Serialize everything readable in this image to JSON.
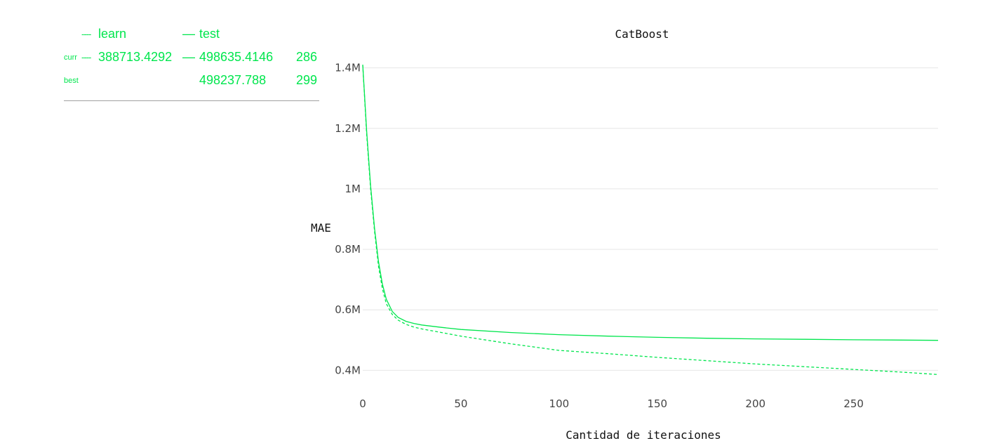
{
  "legend": {
    "learn_label": "learn",
    "test_label": "test",
    "curr_label": "curr",
    "best_label": "best",
    "curr_learn": "388713.4292",
    "curr_test": "498635.4146",
    "curr_iter": "286",
    "best_test": "498237.788",
    "best_iter": "299",
    "learn_symbol": "----",
    "test_symbol": "—"
  },
  "colors": {
    "series": "#00e64d",
    "grid": "#e6e6e6",
    "divider": "#a0a0a0"
  },
  "chart_data": {
    "type": "line",
    "title": "CatBoost",
    "xlabel": "Cantidad de iteraciones",
    "ylabel": "MAE",
    "xlim": [
      0,
      293
    ],
    "ylim": [
      380000,
      1420000
    ],
    "x_ticks": [
      0,
      50,
      100,
      150,
      200,
      250
    ],
    "y_ticks": [
      400000,
      600000,
      800000,
      1000000,
      1200000,
      1400000
    ],
    "y_tick_labels": [
      "0.4M",
      "0.6M",
      "0.8M",
      "1M",
      "1.2M",
      "1.4M"
    ],
    "grid": true,
    "series": [
      {
        "name": "test",
        "style": "solid",
        "x": [
          0,
          2,
          4,
          6,
          8,
          10,
          12,
          15,
          18,
          22,
          26,
          30,
          40,
          50,
          75,
          100,
          125,
          150,
          175,
          200,
          225,
          250,
          275,
          293
        ],
        "y": [
          1410000,
          1190000,
          1010000,
          870000,
          760000,
          685000,
          635000,
          595000,
          575000,
          562000,
          555000,
          550000,
          542000,
          535000,
          525000,
          518000,
          513000,
          509000,
          506000,
          504000,
          502500,
          501000,
          500000,
          499000
        ]
      },
      {
        "name": "learn",
        "style": "dashed",
        "x": [
          0,
          2,
          4,
          6,
          8,
          10,
          12,
          15,
          18,
          22,
          26,
          30,
          40,
          50,
          75,
          100,
          125,
          150,
          175,
          200,
          225,
          250,
          275,
          293
        ],
        "y": [
          1410000,
          1180000,
          1000000,
          860000,
          745000,
          670000,
          620000,
          585000,
          566000,
          552000,
          543000,
          537000,
          525000,
          513000,
          488000,
          466000,
          455000,
          443000,
          432000,
          421000,
          412000,
          403000,
          394000,
          386000
        ]
      }
    ]
  }
}
